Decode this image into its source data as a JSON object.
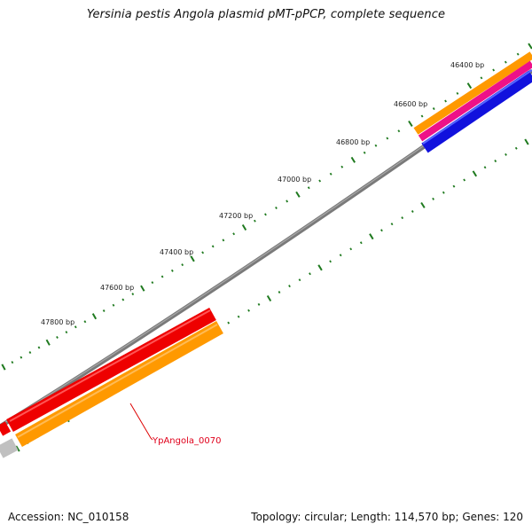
{
  "title": "Yersinia pestis Angola plasmid pMT-pPCP, complete sequence",
  "footer": {
    "accession": "Accession: NC_010158",
    "summary": "Topology: circular; Length: 114,570 bp; Genes: 120"
  },
  "position_labels": [
    "46400 bp",
    "46600 bp",
    "46800 bp",
    "47000 bp",
    "47200 bp",
    "47400 bp",
    "47600 bp",
    "47800 bp"
  ],
  "gene_label": "YpAngola_0070",
  "colors": {
    "backbone": "#7a7a7a",
    "tick": "#1f7a1f",
    "gene_red": "#ee0000",
    "gene_orange": "#ff9900",
    "gene_magenta": "#ee1188",
    "gene_blue": "#1111dd",
    "gene_grey": "#c0c0c0",
    "callout": "#dd0000"
  }
}
